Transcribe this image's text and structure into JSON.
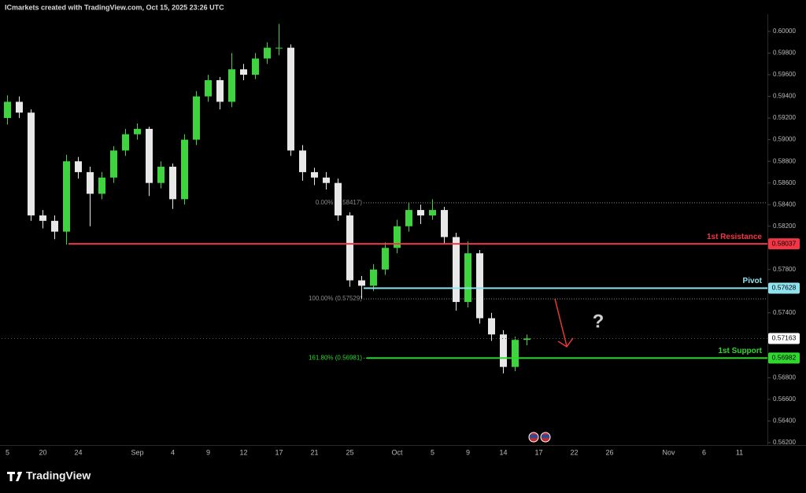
{
  "header": {
    "text": "ICmarkets created with TradingView.com, Oct 15, 2025 23:26 UTC"
  },
  "footer": {
    "brand": "TradingView"
  },
  "chart_data": {
    "type": "candlestick",
    "categories": [
      "5",
      null,
      null,
      "20",
      null,
      null,
      "24",
      null,
      null,
      null,
      null,
      "Sep",
      null,
      null,
      "4",
      null,
      null,
      "9",
      null,
      null,
      "12",
      null,
      null,
      "17",
      null,
      null,
      "21",
      null,
      null,
      "25",
      null,
      null,
      null,
      "Oct",
      null,
      null,
      "5",
      null,
      null,
      "9",
      null,
      null,
      "14",
      null,
      null,
      "17",
      null,
      null,
      "22",
      null,
      null,
      "26",
      null,
      null,
      null,
      null,
      "Nov",
      null,
      null,
      "6",
      null,
      null,
      "11",
      null
    ],
    "open": [
      0.592,
      0.5935,
      0.5925,
      0.583,
      0.5825,
      0.5815,
      0.588,
      0.587,
      0.585,
      0.5865,
      0.589,
      0.5905,
      0.591,
      0.586,
      0.5875,
      0.5845,
      0.59,
      0.594,
      0.5955,
      0.5935,
      0.5965,
      0.596,
      0.5975,
      0.5985,
      0.5985,
      0.589,
      0.587,
      0.5865,
      0.586,
      0.583,
      0.577,
      0.5765,
      0.578,
      0.58,
      0.582,
      0.5835,
      0.583,
      0.5835,
      0.581,
      0.575,
      0.5795,
      0.5735,
      0.572,
      0.569,
      0.5715,
      null,
      null,
      null,
      null,
      null,
      null,
      null,
      null,
      null,
      null,
      null,
      null,
      null,
      null,
      null,
      null,
      null,
      null,
      null
    ],
    "high": [
      0.5941,
      0.594,
      0.5928,
      0.5835,
      0.583,
      0.5886,
      0.5884,
      0.5875,
      0.587,
      0.5894,
      0.591,
      0.5915,
      0.5912,
      0.588,
      0.5878,
      0.5905,
      0.5945,
      0.596,
      0.5958,
      0.598,
      0.597,
      0.598,
      0.599,
      0.6007,
      0.5988,
      0.5895,
      0.5874,
      0.587,
      0.5864,
      0.5833,
      0.5774,
      0.5785,
      0.5805,
      0.5826,
      0.5842,
      0.584,
      0.5845,
      0.5838,
      0.5814,
      0.5806,
      0.5798,
      0.574,
      0.5724,
      0.5718,
      0.572,
      null,
      null,
      null,
      null,
      null,
      null,
      null,
      null,
      null,
      null,
      null,
      null,
      null,
      null,
      null,
      null,
      null,
      null,
      null
    ],
    "low": [
      0.5914,
      0.592,
      0.5825,
      0.5818,
      0.5808,
      0.5803,
      0.5864,
      0.582,
      0.5845,
      0.586,
      0.5885,
      0.59,
      0.5848,
      0.5855,
      0.5836,
      0.584,
      0.5895,
      0.5935,
      0.5928,
      0.593,
      0.5955,
      0.5956,
      0.597,
      0.5978,
      0.5885,
      0.5862,
      0.5858,
      0.5854,
      0.5825,
      0.5764,
      0.5753,
      0.576,
      0.5775,
      0.5795,
      0.5815,
      0.5822,
      0.5826,
      0.5804,
      0.5742,
      0.5745,
      0.573,
      0.5714,
      0.5684,
      0.5686,
      0.571,
      null,
      null,
      null,
      null,
      null,
      null,
      null,
      null,
      null,
      null,
      null,
      null,
      null,
      null,
      null,
      null,
      null,
      null,
      null
    ],
    "close": [
      0.5935,
      0.5925,
      0.583,
      0.5825,
      0.5815,
      0.588,
      0.587,
      0.585,
      0.5865,
      0.589,
      0.5905,
      0.591,
      0.586,
      0.5875,
      0.5845,
      0.59,
      0.594,
      0.5955,
      0.5935,
      0.5965,
      0.596,
      0.5975,
      0.5985,
      0.5985,
      0.589,
      0.587,
      0.5865,
      0.586,
      0.583,
      0.577,
      0.5765,
      0.578,
      0.58,
      0.582,
      0.5835,
      0.583,
      0.5835,
      0.581,
      0.575,
      0.5795,
      0.5735,
      0.572,
      0.569,
      0.5715,
      0.57163,
      null,
      null,
      null,
      null,
      null,
      null,
      null,
      null,
      null,
      null,
      null,
      null,
      null,
      null,
      null,
      null,
      null,
      null,
      null
    ],
    "up_color": "#3fd43f",
    "down_color": "#e8e8e8",
    "ylim": [
      0.56178,
      0.6016
    ],
    "yticks": [
      {
        "value": 0.6,
        "label": "0.60000"
      },
      {
        "value": 0.598,
        "label": "0.59800"
      },
      {
        "value": 0.596,
        "label": "0.59600"
      },
      {
        "value": 0.594,
        "label": "0.59400"
      },
      {
        "value": 0.592,
        "label": "0.59200"
      },
      {
        "value": 0.59,
        "label": "0.59000"
      },
      {
        "value": 0.588,
        "label": "0.58800"
      },
      {
        "value": 0.586,
        "label": "0.58600"
      },
      {
        "value": 0.584,
        "label": "0.58400"
      },
      {
        "value": 0.582,
        "label": "0.58200"
      },
      {
        "value": 0.578,
        "label": "0.57800"
      },
      {
        "value": 0.574,
        "label": "0.57400"
      },
      {
        "value": 0.568,
        "label": "0.56800"
      },
      {
        "value": 0.566,
        "label": "0.56600"
      },
      {
        "value": 0.564,
        "label": "0.56400"
      },
      {
        "value": 0.562,
        "label": "0.56200"
      }
    ],
    "grid": false,
    "levels": [
      {
        "name": "1st Resistance",
        "value": 0.58037,
        "color": "#f23645"
      },
      {
        "name": "Pivot",
        "value": 0.57628,
        "color": "#8fe3ef"
      },
      {
        "name": "1st Support",
        "value": 0.56982,
        "color": "#2fd82f"
      }
    ],
    "fib_levels": [
      {
        "label": "0.00% (0.58417)",
        "value": 0.58417,
        "color": "#8a8a8a"
      },
      {
        "label": "100.00% (0.57529)",
        "value": 0.57529,
        "color": "#8a8a8a"
      },
      {
        "label": "161.80% (0.56981)",
        "value": 0.56981,
        "color": "#2fd82f"
      }
    ],
    "last_price": 0.57163,
    "annotation": "?"
  }
}
